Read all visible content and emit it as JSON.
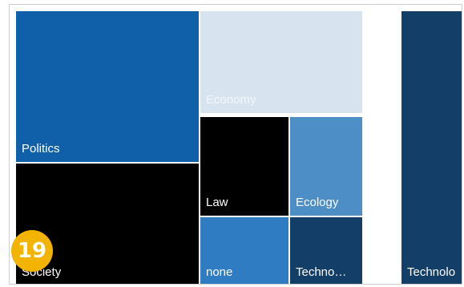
{
  "treemap": {
    "tiles": {
      "politics": "Politics",
      "society": "Society",
      "economy": "Economy",
      "law": "Law",
      "ecology": "Ecology",
      "none": "none",
      "techno": "Techno…",
      "technolo": "Technolo"
    },
    "colors": {
      "politics": "#0f60a9",
      "society": "#000000",
      "economy": "#d7e4ef",
      "law": "#000000",
      "ecology": "#4d8ec7",
      "none": "#2f7cc2",
      "techno": "#133e67",
      "technolo": "#133e67"
    }
  },
  "badge": {
    "number": "19"
  }
}
